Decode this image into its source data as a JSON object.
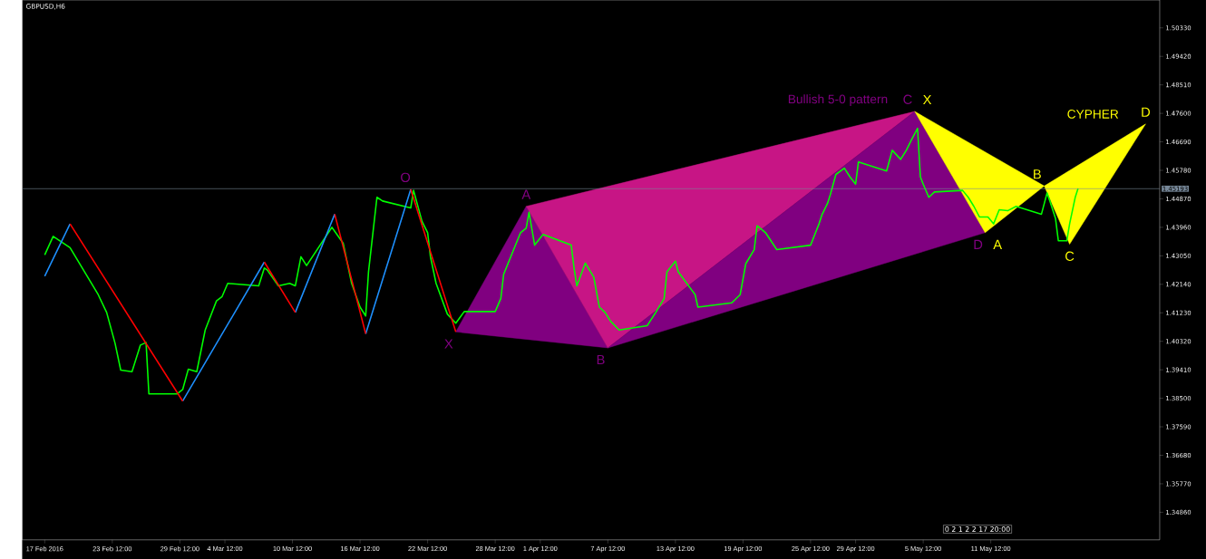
{
  "chart_data": {
    "type": "line",
    "title": "GBPUSD,H6",
    "xlim": [
      "2016-02-15T12:00",
      "2016-05-26T12:00"
    ],
    "ylim": [
      1.3398,
      1.5122
    ],
    "xticks": [
      {
        "value": "2016-02-17T12:00",
        "label": "17 Feb 2016"
      },
      {
        "value": "2016-02-23T12:00",
        "label": "23 Feb 12:00"
      },
      {
        "value": "2016-02-29T12:00",
        "label": "29 Feb 12:00"
      },
      {
        "value": "2016-03-04T12:00",
        "label": "4 Mar 12:00"
      },
      {
        "value": "2016-03-10T12:00",
        "label": "10 Mar 12:00"
      },
      {
        "value": "2016-03-16T12:00",
        "label": "16 Mar 12:00"
      },
      {
        "value": "2016-03-22T12:00",
        "label": "22 Mar 12:00"
      },
      {
        "value": "2016-03-28T12:00",
        "label": "28 Mar 12:00"
      },
      {
        "value": "2016-04-01T12:00",
        "label": "1 Apr 12:00"
      },
      {
        "value": "2016-04-07T12:00",
        "label": "7 Apr 12:00"
      },
      {
        "value": "2016-04-13T12:00",
        "label": "13 Apr 12:00"
      },
      {
        "value": "2016-04-19T12:00",
        "label": "19 Apr 12:00"
      },
      {
        "value": "2016-04-25T12:00",
        "label": "25 Apr 12:00"
      },
      {
        "value": "2016-04-29T12:00",
        "label": "29 Apr 12:00"
      },
      {
        "value": "2016-05-05T12:00",
        "label": "5 May 12:00"
      },
      {
        "value": "2016-05-11T12:00",
        "label": "11 May 12:00"
      }
    ],
    "yticks": [
      {
        "value": 1.3486,
        "label": "1.34860"
      },
      {
        "value": 1.3577,
        "label": "1.35770"
      },
      {
        "value": 1.3668,
        "label": "1.36680"
      },
      {
        "value": 1.3759,
        "label": "1.37590"
      },
      {
        "value": 1.385,
        "label": "1.38500"
      },
      {
        "value": 1.3941,
        "label": "1.39410"
      },
      {
        "value": 1.4032,
        "label": "1.40320"
      },
      {
        "value": 1.4123,
        "label": "1.41230"
      },
      {
        "value": 1.4214,
        "label": "1.42140"
      },
      {
        "value": 1.4305,
        "label": "1.43050"
      },
      {
        "value": 1.4396,
        "label": "1.43960"
      },
      {
        "value": 1.4487,
        "label": "1.44870"
      },
      {
        "value": 1.4578,
        "label": "1.45780"
      },
      {
        "value": 1.4669,
        "label": "1.46690"
      },
      {
        "value": 1.476,
        "label": "1.47600"
      },
      {
        "value": 1.4851,
        "label": "1.48510"
      },
      {
        "value": 1.4942,
        "label": "1.49420"
      },
      {
        "value": 1.5033,
        "label": "1.50330"
      }
    ],
    "ref_lines": [
      {
        "axis": "y",
        "value": 1.45193,
        "label": "1.45193",
        "color": "#778899"
      }
    ],
    "annotations": [
      {
        "text": "O",
        "x": "2016-03-21T00:00",
        "y": 1.4517
      },
      "0 2 1 2 2 17 20:00"
    ],
    "series": [
      {
        "type": "area",
        "color": "#800080",
        "x": [
          "2016-03-25T00:00",
          "2016-03-31T06:00",
          "2016-04-07T12:00",
          "2016-03-25T00:00"
        ],
        "values": [
          1.4062,
          1.4463,
          1.4011,
          1.4062
        ],
        "value_labels": [
          "X",
          "A",
          "B",
          null
        ]
      },
      {
        "type": "area",
        "color": "#c71585",
        "x": [
          "2016-03-31T06:00",
          "2016-05-04T18:00",
          "2016-04-07T12:00",
          "2016-03-31T06:00"
        ],
        "values": [
          1.4463,
          1.4766,
          1.4011,
          1.4463
        ]
      },
      {
        "type": "area",
        "name": "Bullish 5-0 pattern",
        "color": "#800080",
        "x": [
          "2016-04-07T12:00",
          "2016-05-04T18:00",
          "2016-05-11T00:00",
          "2016-04-07T12:00"
        ],
        "values": [
          1.4011,
          1.4766,
          1.4379,
          1.4011
        ],
        "value_labels": [
          null,
          "C",
          "D",
          null
        ]
      },
      {
        "type": "area",
        "color": "#ffff00",
        "x": [
          "2016-05-04T18:00",
          "2016-05-11T00:00",
          "2016-05-16T06:00",
          "2016-05-04T18:00"
        ],
        "values": [
          1.4766,
          1.4379,
          1.4528,
          1.4766
        ],
        "value_labels": [
          "X",
          "A",
          "B",
          null
        ]
      },
      {
        "type": "area",
        "name": "CYPHER",
        "color": "#ffff00",
        "x": [
          "2016-05-16T06:00",
          "2016-05-18T12:00",
          "2016-05-25T06:00",
          "2016-05-16T06:00"
        ],
        "values": [
          1.4528,
          1.4342,
          1.4726,
          1.4528
        ],
        "value_labels": [
          null,
          "C",
          "D",
          null
        ]
      },
      {
        "color": "#00ff00",
        "x": [
          "2016-02-17T12:00",
          "2016-02-18T06:00",
          "2016-02-19T18:00",
          "2016-02-22T06:00",
          "2016-02-23T00:00",
          "2016-02-23T18:00",
          "2016-02-24T06:00",
          "2016-02-25T06:00",
          "2016-02-26T00:00",
          "2016-02-26T12:00",
          "2016-02-26T18:00",
          "2016-02-29T06:00",
          "2016-02-29T18:00",
          "2016-03-01T06:00",
          "2016-03-02T00:00",
          "2016-03-02T18:00",
          "2016-03-03T18:00",
          "2016-03-04T06:00",
          "2016-03-04T18:00",
          "2016-03-07T12:00",
          "2016-03-08T00:00",
          "2016-03-08T06:00",
          "2016-03-09T06:00",
          "2016-03-10T06:00",
          "2016-03-10T18:00",
          "2016-03-11T06:00",
          "2016-03-11T18:00",
          "2016-03-14T00:00",
          "2016-03-15T00:00",
          "2016-03-15T18:00",
          "2016-03-16T12:00",
          "2016-03-17T00:00",
          "2016-03-17T06:00",
          "2016-03-18T00:00",
          "2016-03-18T12:00",
          "2016-03-21T00:00",
          "2016-03-21T06:00",
          "2016-03-22T00:00",
          "2016-03-22T12:00",
          "2016-03-22T18:00",
          "2016-03-23T06:00",
          "2016-03-24T06:00",
          "2016-03-25T00:00",
          "2016-03-25T18:00",
          "2016-03-28T12:00",
          "2016-03-29T00:00",
          "2016-03-29T06:00",
          "2016-03-30T18:00",
          "2016-03-31T06:00",
          "2016-03-31T12:00",
          "2016-04-01T00:00",
          "2016-04-01T18:00",
          "2016-04-04T06:00",
          "2016-04-04T12:00",
          "2016-04-04T18:00",
          "2016-04-05T12:00",
          "2016-04-06T06:00",
          "2016-04-06T18:00",
          "2016-04-07T06:00",
          "2016-04-07T18:00",
          "2016-04-08T12:00",
          "2016-04-11T00:00",
          "2016-04-11T18:00",
          "2016-04-12T12:00",
          "2016-04-12T18:00",
          "2016-04-13T12:00",
          "2016-04-13T18:00",
          "2016-04-15T06:00",
          "2016-04-15T12:00",
          "2016-04-18T12:00",
          "2016-04-19T06:00",
          "2016-04-19T18:00",
          "2016-04-20T12:00",
          "2016-04-20T18:00",
          "2016-04-21T12:00",
          "2016-04-22T12:00",
          "2016-04-25T12:00",
          "2016-04-26T06:00",
          "2016-04-26T12:00",
          "2016-04-27T00:00",
          "2016-04-27T06:00",
          "2016-04-27T18:00",
          "2016-04-28T12:00",
          "2016-04-29T00:00",
          "2016-04-29T12:00",
          "2016-04-29T18:00",
          "2016-05-02T06:00",
          "2016-05-02T18:00",
          "2016-05-03T12:00",
          "2016-05-04T00:00",
          "2016-05-04T12:00",
          "2016-05-05T00:00",
          "2016-05-05T06:00",
          "2016-05-05T12:00",
          "2016-05-06T00:00",
          "2016-05-06T12:00",
          "2016-05-09T00:00",
          "2016-05-09T12:00",
          "2016-05-10T00:00",
          "2016-05-10T12:00",
          "2016-05-11T06:00",
          "2016-05-11T18:00",
          "2016-05-12T06:00",
          "2016-05-13T00:00",
          "2016-05-13T18:00",
          "2016-05-16T00:00",
          "2016-05-16T12:00",
          "2016-05-16T18:00",
          "2016-05-17T06:00",
          "2016-05-17T12:00",
          "2016-05-18T06:00",
          "2016-05-18T12:00",
          "2016-05-19T00:00",
          "2016-05-19T06:00"
        ],
        "values": [
          1.4308,
          1.4367,
          1.4331,
          1.4181,
          1.4124,
          1.4025,
          1.394,
          1.3935,
          1.402,
          1.4028,
          1.3864,
          1.3864,
          1.3878,
          1.3943,
          1.3935,
          1.4068,
          1.4161,
          1.4175,
          1.4217,
          1.4209,
          1.4266,
          1.426,
          1.4209,
          1.4217,
          1.4209,
          1.4302,
          1.4274,
          1.4396,
          1.4345,
          1.4217,
          1.4141,
          1.4113,
          1.4254,
          1.4492,
          1.448,
          1.4458,
          1.4514,
          1.4415,
          1.4379,
          1.4302,
          1.4217,
          1.4119,
          1.409,
          1.4127,
          1.4127,
          1.4169,
          1.4246,
          1.4379,
          1.4393,
          1.4444,
          1.4339,
          1.4373,
          1.4339,
          1.4266,
          1.4209,
          1.4282,
          1.4237,
          1.4141,
          1.4124,
          1.4096,
          1.4068,
          1.4082,
          1.4124,
          1.4169,
          1.4254,
          1.4288,
          1.4254,
          1.4181,
          1.4141,
          1.4155,
          1.4181,
          1.428,
          1.4325,
          1.4401,
          1.4379,
          1.4325,
          1.4339,
          1.4407,
          1.4435,
          1.4472,
          1.45,
          1.4565,
          1.4585,
          1.4557,
          1.4534,
          1.4605,
          1.4576,
          1.4642,
          1.4613,
          1.4642,
          1.4678,
          1.4712,
          1.4557,
          1.4534,
          1.4492,
          1.4509,
          1.4514,
          1.4492,
          1.4463,
          1.4429,
          1.4429,
          1.4407,
          1.4452,
          1.4449,
          1.4463,
          1.4438,
          1.4506,
          1.448,
          1.4424,
          1.4353,
          1.4353,
          1.4407,
          1.4492,
          1.452
        ]
      },
      {
        "color": "#1e90ff",
        "x": [
          "2016-02-17T12:00",
          "2016-02-19T18:00",
          "2016-02-24T12:00",
          "2016-02-29T18:00",
          "2016-03-08T00:00",
          "2016-03-09T12:00",
          "2016-03-10T18:00",
          "2016-03-14T06:00",
          "2016-03-15T12:00",
          "2016-03-17T00:00",
          "2016-03-21T00:00"
        ],
        "values": [
          1.424,
          1.4407,
          null,
          1.3841,
          1.4285,
          null,
          1.4124,
          1.4438,
          null,
          1.4056,
          1.4517
        ]
      },
      {
        "color": "#ff0000",
        "x": [
          "2016-02-19T18:00",
          "2016-02-29T18:00",
          "2016-03-02T12:00",
          "2016-03-08T00:00",
          "2016-03-10T18:00",
          "2016-03-11T12:00",
          "2016-03-14T06:00",
          "2016-03-17T00:00",
          "2016-03-18T00:00",
          "2016-03-21T00:00",
          "2016-03-25T00:00"
        ],
        "values": [
          1.4407,
          1.3841,
          null,
          1.4285,
          1.4124,
          null,
          1.4438,
          1.4056,
          null,
          1.4517,
          1.4062
        ]
      }
    ]
  }
}
